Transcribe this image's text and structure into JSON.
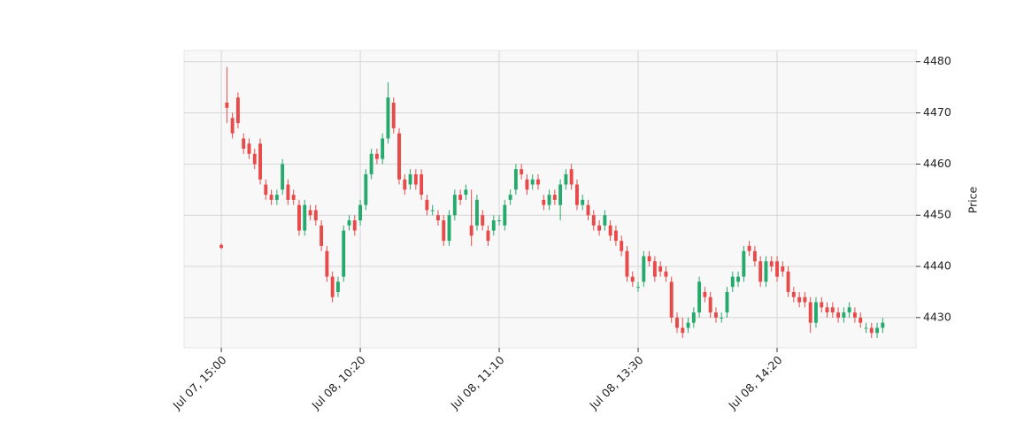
{
  "chart_data": {
    "type": "candlestick",
    "ylabel": "Price",
    "up_color": "#26a96c",
    "down_color": "#e84a4a",
    "grid": true,
    "xlim": [
      -6.7,
      125
    ],
    "ylim": [
      4424.1,
      4482.2
    ],
    "yticks": [
      4430,
      4440,
      4450,
      4460,
      4470,
      4480
    ],
    "xticks": [
      {
        "value": 0,
        "label": "Jul 07, 15:00"
      },
      {
        "value": 25,
        "label": "Jul 08, 10:20"
      },
      {
        "value": 50,
        "label": "Jul 08, 11:10"
      },
      {
        "value": 75,
        "label": "Jul 08, 13:30"
      },
      {
        "value": 100,
        "label": "Jul 08, 14:20"
      }
    ],
    "open": [
      4444.2,
      4472,
      4469,
      4473,
      4465,
      4464,
      4462,
      4464,
      4456,
      4454,
      4453,
      4455,
      4456,
      4454,
      4452,
      4447,
      4451,
      4451,
      4448,
      4443,
      4438,
      4435,
      4438,
      4448,
      4449,
      4449,
      4452,
      4458,
      4462,
      4461,
      4465,
      4472,
      4466,
      4457,
      4456,
      4458,
      4458,
      4453,
      4451,
      4450,
      4449,
      4445,
      4450,
      4454,
      4454,
      4448,
      4448,
      4450,
      4447,
      4447,
      4449,
      4448,
      4453,
      4455,
      4459,
      4457,
      4456,
      4457,
      4453,
      4452,
      4454,
      4452,
      4456,
      4459,
      4456,
      4452,
      4452,
      4450,
      4448,
      4448,
      4448,
      4447,
      4445,
      4443,
      4438,
      4436,
      4437,
      4442,
      4441,
      4440,
      4439,
      4437,
      4430,
      4428,
      4428,
      4429,
      4431,
      4435,
      4434,
      4431,
      4430,
      4431,
      4436,
      4437,
      4438,
      4444,
      4443,
      4441,
      4437,
      4441,
      4441,
      4440,
      4439,
      4435,
      4434,
      4434,
      4433,
      4429,
      4433,
      4432,
      4432,
      4431,
      4430,
      4431,
      4431,
      4430,
      4428,
      4428,
      4427,
      4428
    ],
    "high": [
      4444.5,
      4479,
      4470,
      4474,
      4466,
      4465,
      4463,
      4465,
      4457,
      4455,
      4455,
      4461,
      4457,
      4455,
      4453,
      4453,
      4452,
      4452,
      4449,
      4444,
      4439,
      4438,
      4448,
      4450,
      4450,
      4453,
      4459,
      4463,
      4463,
      4466,
      4476,
      4473,
      4467,
      4458,
      4459,
      4459,
      4459,
      4454,
      4452,
      4451,
      4450,
      4451,
      4455,
      4455,
      4456,
      4455,
      4454,
      4451,
      4448,
      4450,
      4450,
      4453,
      4455,
      4460,
      4460,
      4458,
      4458,
      4458,
      4454,
      4455,
      4455,
      4457,
      4459,
      4460,
      4457,
      4454,
      4453,
      4451,
      4449,
      4451,
      4449,
      4448,
      4446,
      4444,
      4439,
      4437,
      4443,
      4443,
      4442,
      4441,
      4440,
      4438,
      4431,
      4430,
      4430,
      4432,
      4438,
      4436,
      4435,
      4432,
      4431,
      4436,
      4439,
      4439,
      4444,
      4445,
      4444,
      4442,
      4442,
      4442,
      4442,
      4441,
      4440,
      4436,
      4435,
      4435,
      4434,
      4434,
      4434,
      4433,
      4433,
      4432,
      4432,
      4433,
      4432,
      4431,
      4429,
      4429,
      4429,
      4430
    ],
    "low": [
      4443.4,
      4468,
      4465,
      4467,
      4462,
      4461,
      4459,
      4456,
      4453,
      4452,
      4452,
      4454,
      4452,
      4452,
      4446,
      4446,
      4449,
      4448,
      4443,
      4437,
      4433,
      4434,
      4437,
      4447,
      4446,
      4448,
      4451,
      4457,
      4460,
      4460,
      4464,
      4466,
      4456,
      4454,
      4455,
      4455,
      4453,
      4450,
      4450,
      4448,
      4444,
      4444,
      4449,
      4452,
      4453,
      4444,
      4447,
      4447,
      4444,
      4446,
      4448,
      4447,
      4452,
      4454,
      4457,
      4454,
      4455,
      4455,
      4451,
      4451,
      4452,
      4449,
      4455,
      4455,
      4451,
      4451,
      4449,
      4447,
      4446,
      4447,
      4445,
      4444,
      4442,
      4437,
      4436,
      4435,
      4436,
      4440,
      4437,
      4438,
      4437,
      4429,
      4427,
      4426,
      4427,
      4428,
      4430,
      4433,
      4430,
      4429,
      4429,
      4430,
      4435,
      4436,
      4437,
      4442,
      4440,
      4436,
      4436,
      4439,
      4437,
      4438,
      4434,
      4433,
      4432,
      4432,
      4427,
      4428,
      4431,
      4430,
      4430,
      4429,
      4429,
      4430,
      4429,
      4428,
      4427,
      4426,
      4426,
      4427
    ],
    "close": [
      4443.6,
      4471,
      4466,
      4468,
      4463,
      4462,
      4460,
      4457,
      4454,
      4453,
      4454,
      4460,
      4453,
      4453,
      4447,
      4452,
      4450,
      4449,
      4444,
      4438,
      4434,
      4437,
      4447,
      4449,
      4447,
      4452,
      4458,
      4462,
      4461,
      4465,
      4473,
      4467,
      4457,
      4455,
      4458,
      4456,
      4454,
      4451,
      4451,
      4449,
      4445,
      4450,
      4454,
      4453,
      4455,
      4446,
      4453,
      4448,
      4445,
      4449,
      4449,
      4452,
      4454,
      4459,
      4458,
      4455,
      4457,
      4456,
      4452,
      4454,
      4453,
      4456,
      4458,
      4456,
      4452,
      4453,
      4450,
      4448,
      4447,
      4450,
      4446,
      4445,
      4443,
      4438,
      4437,
      4436,
      4442,
      4441,
      4438,
      4439,
      4438,
      4430,
      4428,
      4427,
      4429,
      4431,
      4437,
      4434,
      4431,
      4430,
      4430,
      4435,
      4438,
      4438,
      4443,
      4443,
      4441,
      4437,
      4441,
      4440,
      4438,
      4439,
      4435,
      4434,
      4433,
      4433,
      4429,
      4433,
      4432,
      4431,
      4431,
      4430,
      4431,
      4432,
      4430,
      4429,
      4428,
      4427,
      4428,
      4429
    ]
  }
}
